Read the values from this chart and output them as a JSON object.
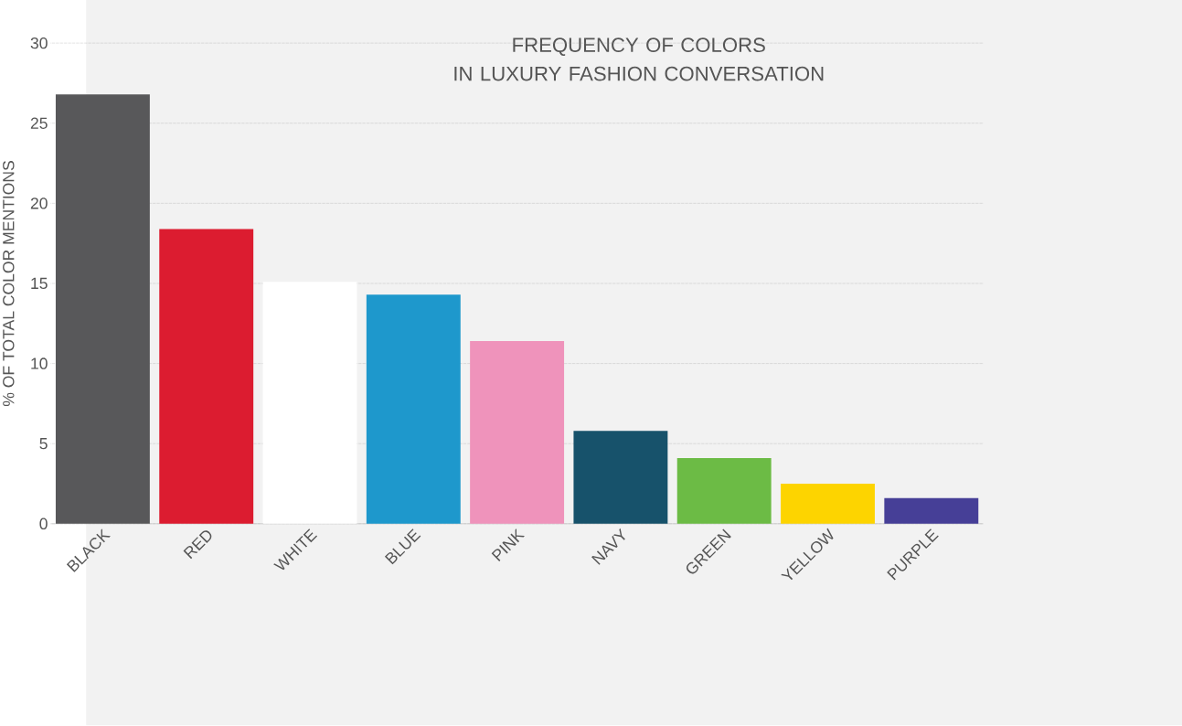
{
  "chart_data": {
    "type": "bar",
    "title": "FREQUENCY OF COLORS IN LUXURY FASHION CONVERSATION",
    "ylabel": "% OF TOTAL COLOR MENTIONS",
    "categories": [
      "BLACK",
      "RED",
      "WHITE",
      "BLUE",
      "PINK",
      "NAVY",
      "GREEN",
      "YELLOW",
      "PURPLE"
    ],
    "values": [
      26.8,
      18.4,
      15.1,
      14.3,
      11.4,
      5.8,
      4.1,
      2.5,
      1.6
    ],
    "colors": [
      "#58585a",
      "#dc1c30",
      "#ffffff",
      "#1e98cc",
      "#ef93bb",
      "#17526b",
      "#6cbb45",
      "#fdd400",
      "#463f97"
    ],
    "ylim": [
      0,
      30
    ],
    "yticks": [
      0,
      5,
      10,
      15,
      20,
      25,
      30
    ],
    "grid": "y"
  }
}
